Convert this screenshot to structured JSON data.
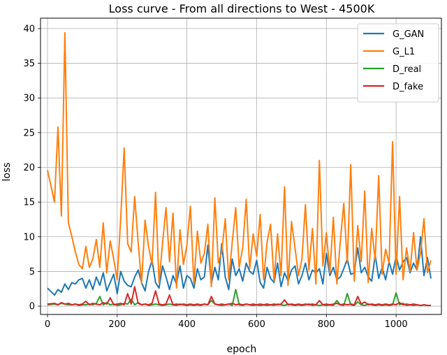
{
  "chart_data": {
    "type": "line",
    "title": "Loss curve - From all directions to West - 4500K",
    "xlabel": "epoch",
    "ylabel": "loss",
    "xlim": [
      -20,
      1130
    ],
    "ylim": [
      -1.2,
      41.5
    ],
    "xticks": [
      0,
      200,
      400,
      600,
      800,
      1000
    ],
    "yticks": [
      0,
      5,
      10,
      15,
      20,
      25,
      30,
      35,
      40
    ],
    "grid": true,
    "legend_position": "top-right",
    "x": [
      0,
      20,
      30,
      40,
      50,
      60,
      70,
      80,
      90,
      100,
      110,
      120,
      130,
      140,
      150,
      160,
      170,
      180,
      190,
      200,
      210,
      220,
      230,
      240,
      250,
      260,
      270,
      280,
      290,
      300,
      310,
      320,
      330,
      340,
      350,
      360,
      370,
      380,
      390,
      400,
      410,
      420,
      430,
      440,
      450,
      460,
      470,
      480,
      490,
      500,
      510,
      520,
      530,
      540,
      550,
      560,
      570,
      580,
      590,
      600,
      610,
      620,
      630,
      640,
      650,
      660,
      670,
      680,
      690,
      700,
      710,
      720,
      730,
      740,
      750,
      760,
      770,
      780,
      790,
      800,
      810,
      820,
      830,
      840,
      850,
      860,
      870,
      880,
      890,
      900,
      910,
      920,
      930,
      940,
      950,
      960,
      970,
      980,
      990,
      1000,
      1010,
      1020,
      1030,
      1040,
      1050,
      1060,
      1070,
      1080,
      1090,
      1100
    ],
    "series": [
      {
        "name": "G_GAN",
        "color": "#1f77b4",
        "values": [
          2.6,
          1.6,
          2.4,
          2.0,
          3.2,
          2.4,
          3.4,
          3.2,
          3.8,
          4.0,
          2.6,
          3.8,
          2.4,
          4.2,
          3.0,
          4.8,
          2.2,
          3.4,
          4.6,
          1.8,
          5.0,
          3.6,
          3.0,
          2.8,
          4.2,
          5.2,
          3.4,
          2.2,
          5.0,
          6.6,
          3.4,
          2.6,
          5.8,
          4.2,
          2.4,
          4.4,
          3.2,
          5.8,
          2.6,
          4.4,
          4.0,
          2.6,
          5.4,
          3.8,
          4.2,
          8.8,
          3.2,
          5.6,
          3.8,
          9.0,
          4.2,
          2.4,
          6.8,
          4.4,
          5.4,
          3.6,
          6.2,
          5.0,
          4.6,
          6.6,
          3.4,
          2.6,
          5.6,
          4.0,
          3.4,
          6.2,
          2.8,
          4.8,
          3.6,
          5.2,
          5.8,
          3.2,
          4.4,
          6.2,
          3.8,
          5.2,
          4.8,
          5.4,
          3.2,
          7.6,
          4.4,
          5.6,
          3.8,
          4.2,
          5.4,
          6.8,
          4.6,
          4.8,
          8.4,
          4.8,
          5.6,
          4.2,
          3.6,
          7.4,
          4.0,
          5.6,
          3.8,
          6.4,
          4.6,
          7.2,
          5.2,
          6.4,
          7.0,
          4.8,
          6.2,
          5.2,
          10.0,
          4.4,
          7.0,
          4.0
        ]
      },
      {
        "name": "G_L1",
        "color": "#ff7f0e",
        "values": [
          19.6,
          15.0,
          25.8,
          13.0,
          39.4,
          12.0,
          10.0,
          7.8,
          6.0,
          5.4,
          8.6,
          5.6,
          6.8,
          9.6,
          5.6,
          12.0,
          4.8,
          9.4,
          6.8,
          3.8,
          12.6,
          22.8,
          9.0,
          7.8,
          15.8,
          9.2,
          3.2,
          12.4,
          8.6,
          6.0,
          16.4,
          3.4,
          9.0,
          14.2,
          6.4,
          13.4,
          2.6,
          11.0,
          6.0,
          8.8,
          14.4,
          3.2,
          10.8,
          6.2,
          7.6,
          11.8,
          2.8,
          15.6,
          6.2,
          7.8,
          12.6,
          3.8,
          9.2,
          14.2,
          5.6,
          8.4,
          15.4,
          5.4,
          10.4,
          7.2,
          13.2,
          3.8,
          9.2,
          11.8,
          3.6,
          10.4,
          4.4,
          17.2,
          3.0,
          12.2,
          8.4,
          4.4,
          6.8,
          14.6,
          5.2,
          11.2,
          3.2,
          21.0,
          5.8,
          10.6,
          4.8,
          12.8,
          3.2,
          9.4,
          14.8,
          6.2,
          20.4,
          3.6,
          11.6,
          6.4,
          16.6,
          3.4,
          11.2,
          6.6,
          18.8,
          4.6,
          8.2,
          6.2,
          23.7,
          4.6,
          15.8,
          3.8,
          8.4,
          5.0,
          10.6,
          5.2,
          7.6,
          12.6,
          4.8,
          6.6
        ]
      },
      {
        "name": "D_real",
        "color": "#2ca02c",
        "values": [
          0.2,
          0.3,
          0.2,
          0.4,
          0.3,
          0.2,
          0.2,
          0.3,
          0.1,
          0.2,
          0.2,
          0.3,
          0.2,
          0.4,
          1.4,
          0.2,
          0.5,
          0.2,
          0.3,
          0.1,
          0.2,
          0.4,
          0.3,
          1.0,
          0.2,
          0.5,
          0.2,
          0.3,
          0.1,
          0.2,
          0.3,
          0.2,
          0.1,
          0.2,
          0.3,
          0.2,
          0.1,
          0.3,
          0.2,
          0.1,
          0.2,
          0.1,
          0.2,
          0.1,
          0.3,
          0.2,
          0.8,
          0.3,
          0.2,
          0.1,
          0.2,
          0.3,
          0.1,
          2.4,
          0.2,
          0.1,
          0.3,
          0.2,
          0.1,
          0.2,
          0.1,
          0.2,
          0.1,
          0.2,
          0.1,
          0.3,
          0.2,
          0.1,
          0.3,
          0.2,
          0.1,
          0.2,
          0.1,
          0.2,
          0.3,
          0.1,
          0.2,
          0.1,
          0.2,
          0.1,
          0.2,
          0.1,
          0.8,
          0.2,
          0.1,
          1.8,
          0.2,
          0.1,
          0.6,
          0.2,
          0.1,
          0.3,
          0.2,
          0.1,
          0.2,
          0.1,
          0.2,
          0.1,
          0.2,
          1.9,
          0.2,
          0.4,
          0.1,
          0.2,
          0.1,
          0.2,
          0.1,
          0.2,
          0.1,
          0.1
        ]
      },
      {
        "name": "D_fake",
        "color": "#d62728",
        "values": [
          0.3,
          0.4,
          0.2,
          0.5,
          0.3,
          0.4,
          0.2,
          0.3,
          0.2,
          0.3,
          0.7,
          0.2,
          0.4,
          0.3,
          0.2,
          0.5,
          0.3,
          1.2,
          0.2,
          0.3,
          0.4,
          0.2,
          1.8,
          0.3,
          2.8,
          0.4,
          0.2,
          0.3,
          0.2,
          0.4,
          2.2,
          0.3,
          0.2,
          0.3,
          1.6,
          0.2,
          0.3,
          0.2,
          0.3,
          0.2,
          0.3,
          0.2,
          0.3,
          0.2,
          0.3,
          0.2,
          1.4,
          0.3,
          0.2,
          0.3,
          0.2,
          0.3,
          0.4,
          0.2,
          0.3,
          0.2,
          0.3,
          0.2,
          0.3,
          0.2,
          0.3,
          0.2,
          0.3,
          0.2,
          0.3,
          0.2,
          0.3,
          0.9,
          0.2,
          0.3,
          0.2,
          0.3,
          0.2,
          0.3,
          0.2,
          0.3,
          0.2,
          0.8,
          0.2,
          0.3,
          0.2,
          0.3,
          0.4,
          0.2,
          0.3,
          0.2,
          0.3,
          0.2,
          1.4,
          0.3,
          0.6,
          0.2,
          0.3,
          0.2,
          0.3,
          0.2,
          0.3,
          0.2,
          0.3,
          0.2,
          0.5,
          0.2,
          0.3,
          0.2,
          0.3,
          0.2,
          0.1,
          0.2,
          0.1,
          0.1
        ]
      }
    ]
  }
}
